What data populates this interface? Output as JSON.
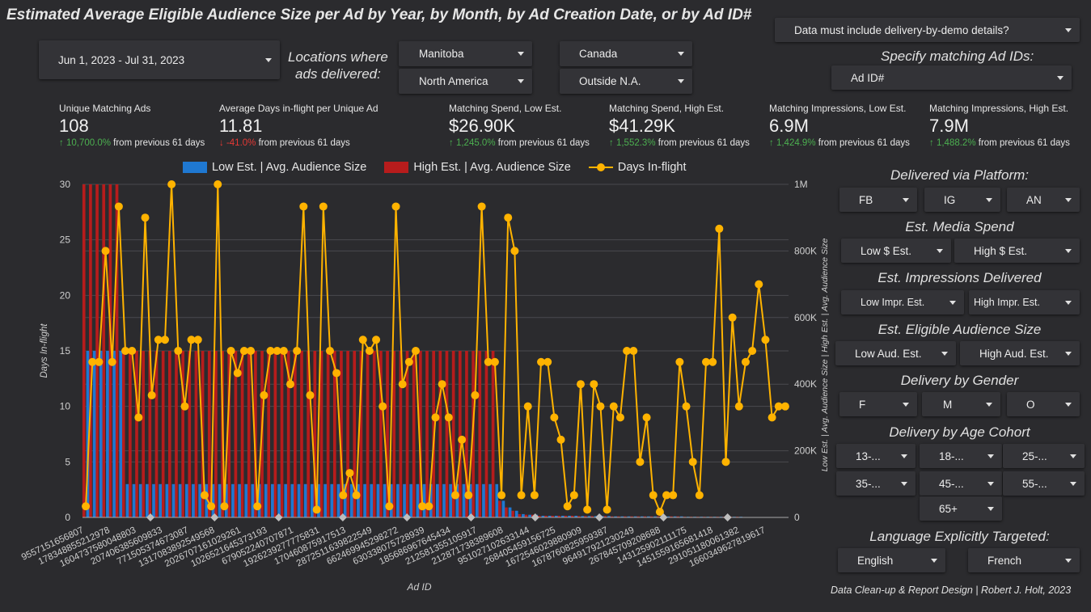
{
  "title": "Estimated Average Eligible Audience Size per Ad by Year, by Month, by Ad Creation Date, or by Ad ID#",
  "filters": {
    "date_range": "Jun 1, 2023 - Jul 31, 2023",
    "locations_label_line1": "Locations where",
    "locations_label_line2": "ads delivered:",
    "manitoba": "Manitoba",
    "canada": "Canada",
    "north_america": "North America",
    "outside_na": "Outside N.A.",
    "delivery_demo": "Data must include delivery-by-demo details?",
    "ad_ids_label": "Specify matching Ad IDs:",
    "ad_id": "Ad ID#"
  },
  "kpis": [
    {
      "name": "Unique Matching Ads",
      "value": "108",
      "delta": "10,700.0%",
      "dir": "up",
      "suffix": "from previous 61 days"
    },
    {
      "name": "Average Days in-flight per Unique Ad",
      "value": "11.81",
      "delta": "-41.0%",
      "dir": "down",
      "suffix": "from previous 61 days"
    },
    {
      "name": "Matching Spend, Low Est.",
      "value": "$26.90K",
      "delta": "1,245.0%",
      "dir": "up",
      "suffix": "from previous 61 days"
    },
    {
      "name": "Matching Spend, High Est.",
      "value": "$41.29K",
      "delta": "1,552.3%",
      "dir": "up",
      "suffix": "from previous 61 days"
    },
    {
      "name": "Matching Impressions, Low Est.",
      "value": "6.9M",
      "delta": "1,424.9%",
      "dir": "up",
      "suffix": "from previous 61 days"
    },
    {
      "name": "Matching Impressions, High Est.",
      "value": "7.9M",
      "delta": "1,488.2%",
      "dir": "up",
      "suffix": "from previous 61 days"
    }
  ],
  "legend": {
    "low": "Low Est. | Avg. Audience Size",
    "high": "High Est. | Avg. Audience Size",
    "days": "Days In-flight"
  },
  "colors": {
    "low": "#1f78d1",
    "high": "#b71c1c",
    "days": "#ffb300",
    "bg": "#2b2b2e"
  },
  "side": {
    "platform_label": "Delivered via Platform:",
    "platforms": [
      "FB",
      "IG",
      "AN"
    ],
    "spend_label": "Est. Media Spend",
    "spend": [
      "Low $ Est.",
      "High $ Est."
    ],
    "impr_label": "Est. Impressions Delivered",
    "impr": [
      "Low Impr. Est.",
      "High Impr. Est."
    ],
    "aud_label": "Est. Eligible Audience Size",
    "aud": [
      "Low Aud. Est.",
      "High Aud. Est."
    ],
    "gender_label": "Delivery by Gender",
    "gender": [
      "F",
      "M",
      "O"
    ],
    "age_label": "Delivery by Age Cohort",
    "age": [
      "13-...",
      "18-...",
      "25-...",
      "35-...",
      "45-...",
      "55-...",
      "65+"
    ],
    "lang_label": "Language Explicitly Targeted:",
    "lang": [
      "English",
      "French"
    ]
  },
  "footer": "Data Clean-up & Report Design | Robert J. Holt, 2023",
  "chart_data": {
    "type": "bar",
    "xlabel": "Ad ID",
    "ylabel_left": "Days In-flight",
    "ylabel_right": "Low Est. | Avg. Audience Size | High Est. | Avg. Audience Size",
    "ylim_left": [
      0,
      30
    ],
    "ylim_right": [
      0,
      1000000
    ],
    "left_ticks": [
      0,
      5,
      10,
      15,
      20,
      25,
      30
    ],
    "right_ticks": [
      "0",
      "200K",
      "400K",
      "600K",
      "800K",
      "1M"
    ],
    "x_tick_labels": [
      "9557151656807",
      "17834885521 2978",
      "16047375800 48803",
      "20740638560 9833",
      "7715053746 73087",
      "13170838925 49568",
      "20267071610 29261",
      "10265216453 73193",
      "67905224070 7871",
      "19262392777 75831",
      "17046087591 7513",
      "28725116398 22549",
      "66246994529 8272",
      "63033807572 8939",
      "18568696764 5434",
      "21258135510 5917",
      "21287173838 9608",
      "9510271026 33144",
      "26840545915 6725",
      "16725460298 80909",
      "16787608259 59387",
      "96491792123 0249",
      "26784570920 8688",
      "14312590211 1175",
      "14515591656 81418",
      "29105118006 1382",
      "16603496278 19617"
    ],
    "series": [
      {
        "name": "Days In-flight",
        "axis": "left",
        "values": [
          1,
          14,
          14,
          24,
          14,
          28,
          15,
          15,
          9,
          27,
          11,
          16,
          16,
          30,
          15,
          10,
          16,
          16,
          2,
          1,
          30,
          1,
          15,
          13,
          15,
          15,
          1,
          11,
          15,
          15,
          15,
          12,
          15,
          28,
          11,
          0.7,
          28,
          15,
          13,
          2,
          4,
          2,
          16,
          15,
          16,
          10,
          1,
          28,
          12,
          14,
          15,
          1,
          1,
          9,
          12,
          9,
          2,
          7,
          2,
          11,
          28,
          14,
          14,
          2,
          27,
          24,
          2,
          10,
          2,
          14,
          14,
          9,
          7,
          1,
          2,
          12,
          0.7,
          12,
          10,
          0.7,
          10,
          9,
          15,
          15,
          5,
          9,
          2,
          0.5,
          2,
          2,
          14,
          10,
          5,
          2,
          14,
          14,
          26,
          5,
          18,
          10,
          14,
          15,
          21,
          16,
          9,
          10,
          10
        ]
      },
      {
        "name": "Low Est. | Avg. Audience Size",
        "axis": "right",
        "values": [
          500000,
          500000,
          500000,
          500000,
          500000,
          500000,
          100000,
          100000,
          100000,
          100000,
          100000,
          100000,
          100000,
          100000,
          100000,
          100000,
          100000,
          100000,
          100000,
          100000,
          100000,
          100000,
          100000,
          100000,
          100000,
          100000,
          100000,
          100000,
          100000,
          100000,
          100000,
          100000,
          100000,
          100000,
          100000,
          100000,
          100000,
          100000,
          100000,
          100000,
          100000,
          100000,
          100000,
          100000,
          100000,
          100000,
          100000,
          100000,
          100000,
          100000,
          100000,
          100000,
          100000,
          100000,
          100000,
          100000,
          100000,
          100000,
          100000,
          100000,
          100000,
          100000,
          100000,
          50000,
          30000,
          20000,
          10000,
          8000,
          8000,
          5000,
          5000,
          5000,
          5000,
          5000,
          5000,
          4000,
          4000,
          4000,
          4000,
          4000,
          3000,
          3000,
          3000,
          3000,
          3000,
          3000,
          3000,
          3000,
          3000,
          3000,
          3000,
          2000,
          2000,
          2000,
          2000,
          2000,
          2000,
          2000,
          2000,
          2000,
          1000,
          1000,
          1000,
          1000,
          1000,
          1000,
          1000,
          1000
        ]
      },
      {
        "name": "High Est. | Avg. Audience Size",
        "axis": "right",
        "values": [
          1000000,
          1000000,
          1000000,
          1000000,
          1000000,
          1000000,
          500000,
          500000,
          500000,
          500000,
          500000,
          500000,
          500000,
          500000,
          500000,
          500000,
          500000,
          500000,
          500000,
          500000,
          500000,
          500000,
          500000,
          500000,
          500000,
          500000,
          500000,
          500000,
          500000,
          500000,
          500000,
          500000,
          500000,
          500000,
          500000,
          500000,
          500000,
          500000,
          500000,
          500000,
          500000,
          500000,
          500000,
          500000,
          500000,
          500000,
          500000,
          500000,
          500000,
          500000,
          500000,
          500000,
          500000,
          500000,
          500000,
          500000,
          500000,
          500000,
          500000,
          500000,
          500000,
          500000,
          500000,
          50000,
          30000,
          20000,
          10000,
          8000,
          8000,
          5000,
          5000,
          5000,
          5000,
          5000,
          5000,
          4000,
          4000,
          4000,
          4000,
          4000,
          3000,
          3000,
          3000,
          3000,
          3000,
          3000,
          3000,
          3000,
          3000,
          3000,
          3000,
          2000,
          2000,
          2000,
          2000,
          2000,
          2000,
          2000,
          2000,
          2000,
          1000,
          1000,
          1000,
          1000,
          1000,
          1000,
          1000,
          1000
        ]
      }
    ]
  }
}
